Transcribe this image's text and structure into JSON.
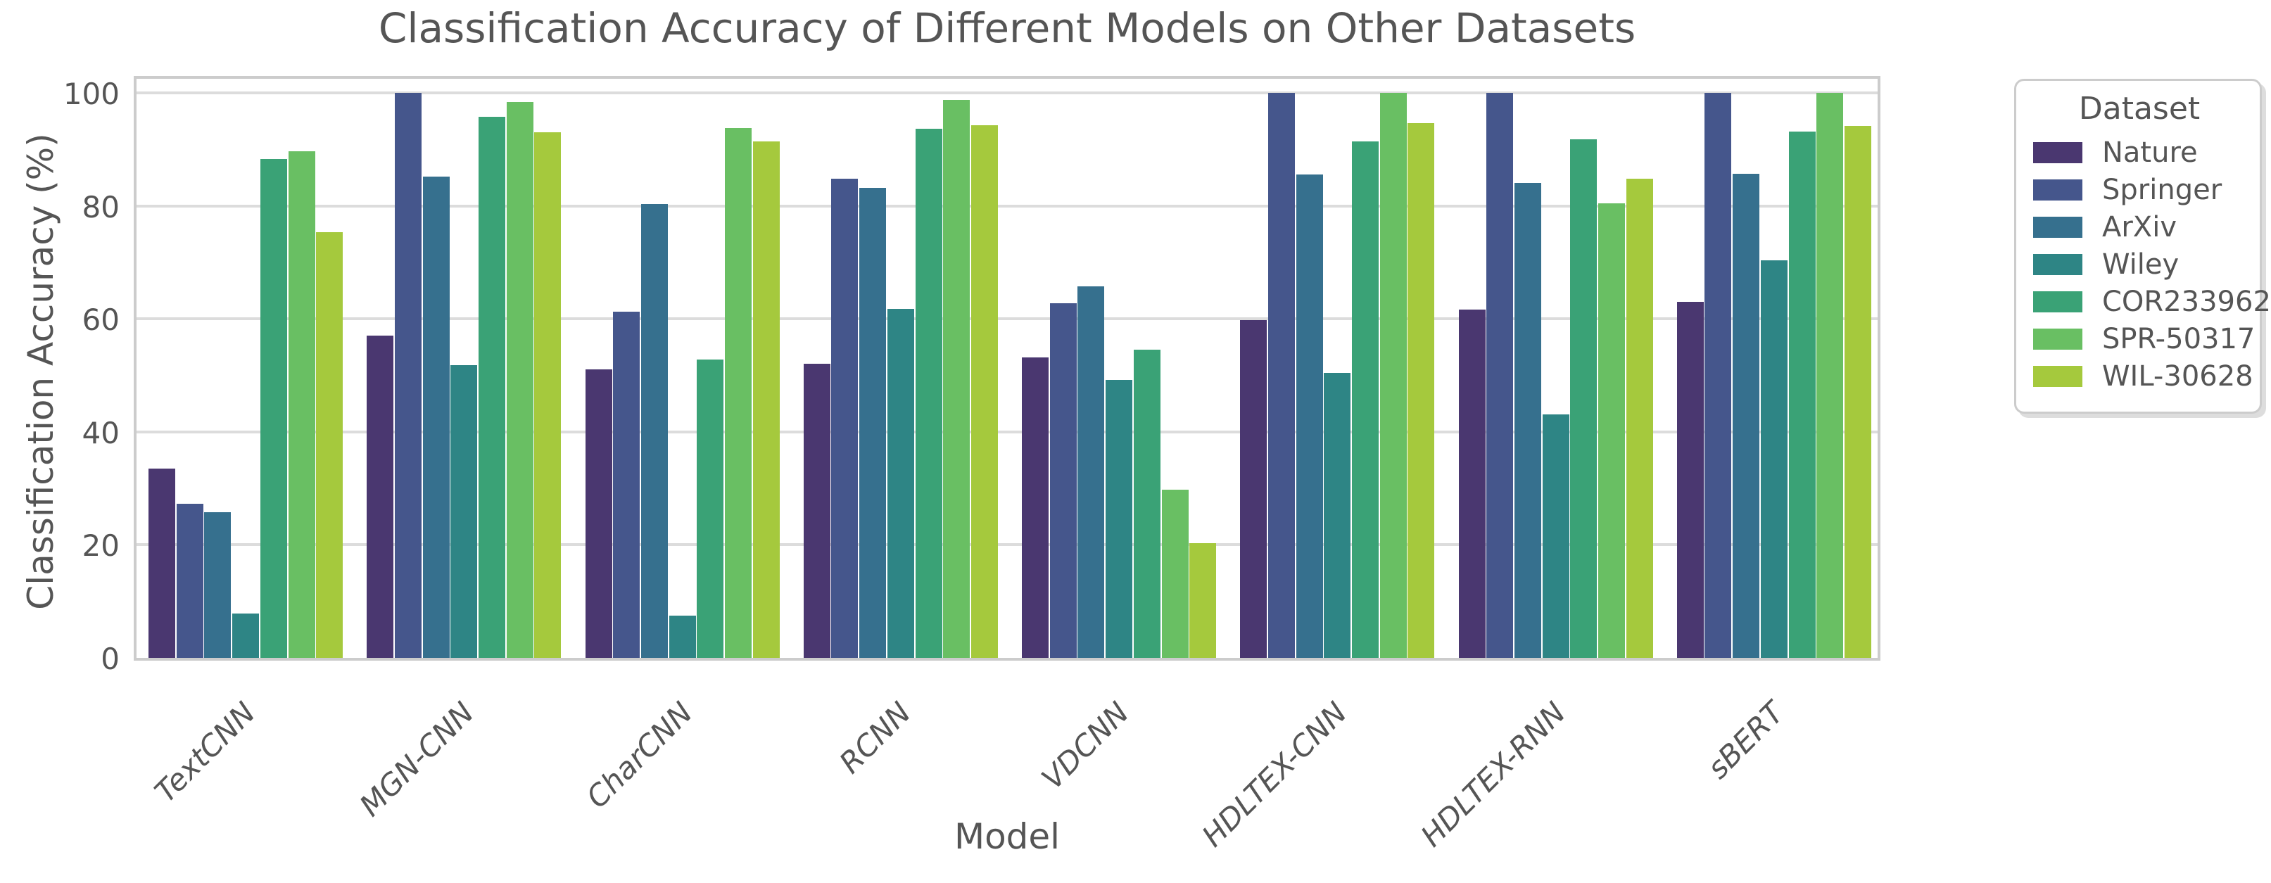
{
  "page": {
    "background": "#ffffff",
    "text_color": "#555555",
    "gridline_color": "#dcdcdc",
    "axis_border_color": "#cccccc"
  },
  "title": "Classification Accuracy of Different Models on Other Datasets",
  "axes": {
    "xlabel": "Model",
    "ylabel": "Classification Accuracy (%)",
    "ytick_labels": [
      "0",
      "20",
      "40",
      "60",
      "80",
      "100"
    ]
  },
  "legend": {
    "title": "Dataset"
  },
  "chart_data": {
    "type": "bar",
    "title": "Classification Accuracy of Different Models on Other Datasets",
    "xlabel": "Model",
    "ylabel": "Classification Accuracy (%)",
    "categories": [
      "TextCNN",
      "MGN-CNN",
      "CharCNN",
      "RCNN",
      "VDCNN",
      "HDLTEX-CNN",
      "HDLTEX-RNN",
      "sBERT"
    ],
    "series": [
      {
        "name": "Nature",
        "color": "#4a3770",
        "values": [
          33.5,
          57.0,
          51.0,
          52.0,
          53.2,
          59.8,
          61.7,
          63.0
        ]
      },
      {
        "name": "Springer",
        "color": "#45568c",
        "values": [
          27.3,
          100.0,
          61.3,
          84.8,
          62.8,
          100.0,
          100.0,
          100.0
        ]
      },
      {
        "name": "ArXiv",
        "color": "#36708e",
        "values": [
          25.8,
          85.2,
          80.3,
          83.2,
          65.8,
          85.5,
          84.1,
          85.7
        ]
      },
      {
        "name": "Wiley",
        "color": "#2e8585",
        "values": [
          7.8,
          51.8,
          7.5,
          61.8,
          49.2,
          50.4,
          43.1,
          70.3
        ]
      },
      {
        "name": "COR233962",
        "color": "#3aa276",
        "values": [
          88.3,
          95.8,
          52.8,
          93.6,
          54.5,
          91.4,
          91.8,
          93.1
        ]
      },
      {
        "name": "SPR-50317",
        "color": "#69bf63",
        "values": [
          89.7,
          98.4,
          93.8,
          98.8,
          29.8,
          100.0,
          80.5,
          100.0
        ]
      },
      {
        "name": "WIL-30628",
        "color": "#a5c93d",
        "values": [
          75.3,
          93.0,
          91.4,
          94.3,
          20.3,
          94.6,
          84.8,
          94.2
        ]
      }
    ],
    "ylim": [
      0,
      100
    ],
    "yticks": [
      0,
      20,
      40,
      60,
      80,
      100
    ],
    "grid": true,
    "legend_title": "Dataset",
    "legend_position": "outside upper right"
  }
}
